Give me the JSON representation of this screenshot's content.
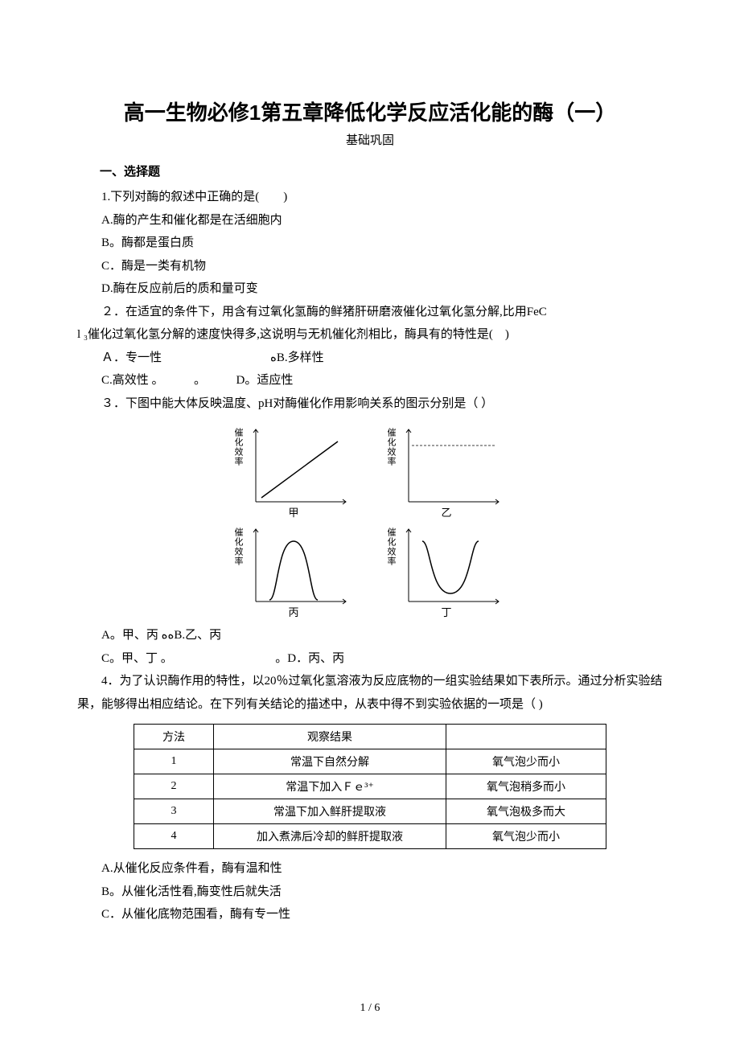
{
  "title": "高一生物必修1第五章降低化学反应活化能的酶（一）",
  "subtitle": "基础巩固",
  "section1_head": "一、选择题",
  "q1": {
    "stem": "1.下列对酶的叙述中正确的是(　　)",
    "A": "A.酶的产生和催化都是在活细胞内",
    "B": "B。酶都是蛋白质",
    "C": "C．酶是一类有机物",
    "D": "D.酶在反应前后的质和量可变"
  },
  "q2": {
    "stem1": "２．在适宜的条件下，用含有过氧化氢酶的鲜猪肝研磨液催化过氧化氢分解,比用FeC",
    "stem2": "l ₃催化过氧化氢分解的速度快得多,这说明与无机催化剂相比，酶具有的特性是(　)",
    "rowAB": "Ａ．专一性　　　　　　　　　ﻩB.多样性",
    "rowCD": "C.高效性 。　　　。　　　D。适应性"
  },
  "q3": {
    "stem": "３．下图中能大体反映温度、pH对酶催化作用影响关系的图示分别是（ ）",
    "ylabel": "催化效率",
    "labels": {
      "a": "甲",
      "b": "乙",
      "c": "丙",
      "d": "丁"
    },
    "axis_color": "#000000",
    "curve_color": "#000000",
    "rowAB": "A。甲、丙 ﻩﻩB.乙、丙",
    "rowCD": "C。甲、丁 。　　　　　　　　　。D．丙、丙"
  },
  "q4": {
    "stem": "4．为了认识酶作用的特性，以20％过氧化氢溶液为反应底物的一组实验结果如下表所示。通过分析实验结果，能够得出相应结论。在下列有关结论的描述中，从表中得不到实验依据的一项是（ )",
    "table": {
      "columns": [
        "方法",
        "观察结果",
        ""
      ],
      "rows": [
        [
          "1",
          "常温下自然分解",
          "氧气泡少而小"
        ],
        [
          "2",
          "常温下加入Ｆｅ³⁺",
          "氧气泡稍多而小"
        ],
        [
          "3",
          "常温下加入鲜肝提取液",
          "氧气泡极多而大"
        ],
        [
          "4",
          "加入煮沸后冷却的鲜肝提取液",
          "氧气泡少而小"
        ]
      ],
      "col_widths": [
        "70px",
        "260px",
        "170px"
      ]
    },
    "A": "A.从催化反应条件看，酶有温和性",
    "B": "B。从催化活性看,酶变性后就失活",
    "C": "C．从催化底物范围看，酶有专一性"
  },
  "footer": "1 / 6"
}
